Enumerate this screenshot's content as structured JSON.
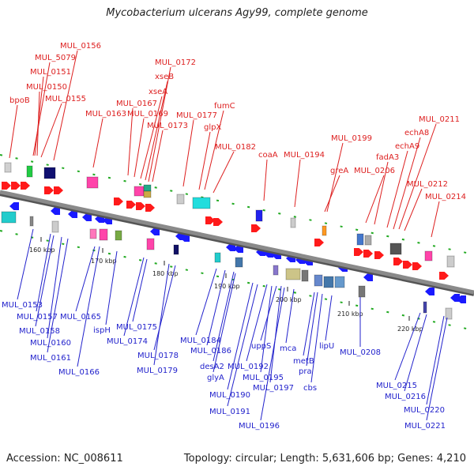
{
  "title": "Mycobacterium ulcerans Agy99, complete genome",
  "footer": {
    "accession": "Accession: NC_008611",
    "summary": "Topology: circular; Length: 5,631,606 bp; Genes: 4,210"
  },
  "colors": {
    "top_label": "#dd1f1f",
    "bottom_label": "#2222cc",
    "backbone": "#8a8a8a",
    "forward_arrow": "#ff1a1a",
    "reverse_arrow": "#1a1aff",
    "tick": "#22aa22"
  },
  "ruler": [
    "160 kbp",
    "170 kbp",
    "180 kbp",
    "190 kbp",
    "200 kbp",
    "210 kbp",
    "220 kbp"
  ],
  "top_labels": [
    "bpoB",
    "MUL_5079",
    "MUL_0151",
    "MUL_0150",
    "MUL_0156",
    "MUL_0155",
    "MUL_0163",
    "MUL_0167",
    "MUL_0169",
    "xseA",
    "xseB",
    "MUL_0172",
    "MUL_0173",
    "MUL_0177",
    "glpX",
    "fumC",
    "MUL_0182",
    "coaA",
    "MUL_0194",
    "greA",
    "MUL_0199",
    "MUL_0206",
    "fadA3",
    "echA9",
    "echA8",
    "MUL_0211",
    "MUL_0212",
    "MUL_0214"
  ],
  "bottom_labels": [
    "MUL_0153",
    "MUL_0157",
    "MUL_0158",
    "MUL_0160",
    "MUL_0161",
    "MUL_0165",
    "ispH",
    "MUL_0166",
    "MUL_0175",
    "MUL_0174",
    "MUL_0178",
    "MUL_0179",
    "MUL_0184",
    "MUL_0186",
    "desA2",
    "glyA",
    "MUL_0190",
    "MUL_0191",
    "uppS",
    "MUL_0192",
    "MUL_0195",
    "MUL_0197",
    "MUL_0196",
    "mca",
    "metB",
    "pra",
    "cbs",
    "lipU",
    "MUL_0208",
    "MUL_0215",
    "MUL_0216",
    "MUL_0220",
    "MUL_0221"
  ]
}
